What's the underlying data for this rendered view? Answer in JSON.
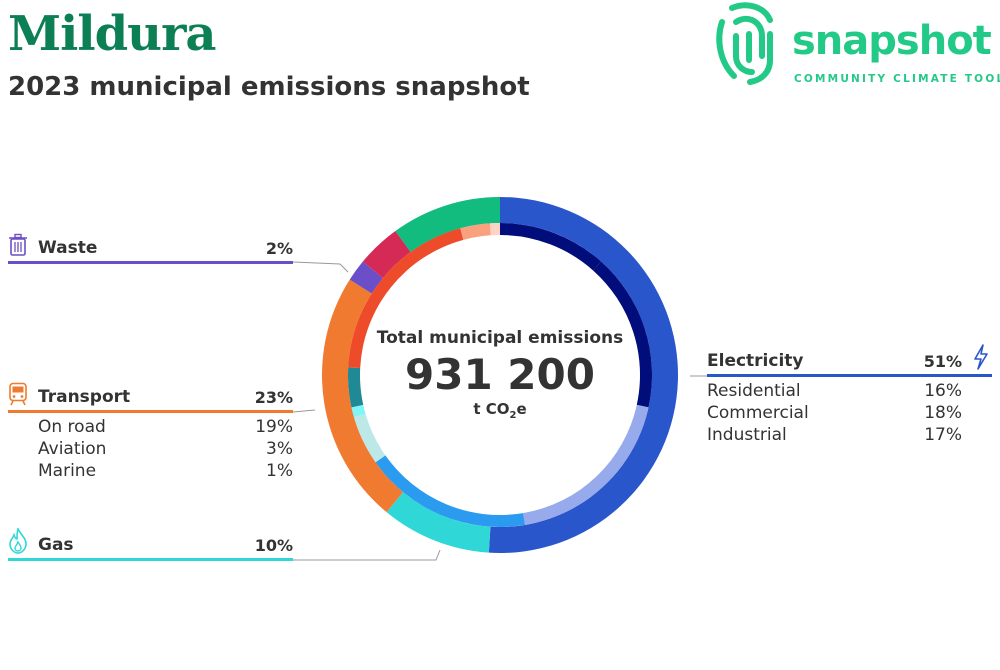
{
  "header": {
    "title": "Mildura",
    "subtitle": "2023 municipal emissions snapshot"
  },
  "logo": {
    "word": "snapshot",
    "tagline": "COMMUNITY CLIMATE TOOL",
    "icon": "fingerprint-icon",
    "color": "#22c987"
  },
  "center": {
    "label": "Total municipal emissions",
    "value": "931 200",
    "unit_prefix": "t CO",
    "unit_sub": "2",
    "unit_suffix": "e"
  },
  "sectors": {
    "waste": {
      "name": "Waste",
      "pct": "2%",
      "icon": "waste-bin-icon",
      "color": "#6b4fc8"
    },
    "transport": {
      "name": "Transport",
      "pct": "23%",
      "icon": "train-icon",
      "color": "#f07a2f",
      "subs": [
        {
          "name": "On road",
          "pct": "19%"
        },
        {
          "name": "Aviation",
          "pct": "3%"
        },
        {
          "name": "Marine",
          "pct": "1%"
        }
      ]
    },
    "gas": {
      "name": "Gas",
      "pct": "10%",
      "icon": "flame-icon",
      "color": "#2fd7d7"
    },
    "electricity": {
      "name": "Electricity",
      "pct": "51%",
      "icon": "lightning-icon",
      "color": "#2a56cc",
      "subs": [
        {
          "name": "Residential",
          "pct": "16%"
        },
        {
          "name": "Commercial",
          "pct": "18%"
        },
        {
          "name": "Industrial",
          "pct": "17%"
        }
      ]
    }
  },
  "chart_data": {
    "type": "donut",
    "total": 931200,
    "outer_ring": [
      {
        "name": "Electricity",
        "value": 51,
        "color": "#2a56cc"
      },
      {
        "name": "Gas",
        "value": 10,
        "color": "#2fd7d7"
      },
      {
        "name": "Transport",
        "value": 23,
        "color": "#f07a2f"
      },
      {
        "name": "Waste",
        "value": 2,
        "color": "#6b4fc8"
      },
      {
        "name": "",
        "value": 4,
        "color": "#d42a55"
      },
      {
        "name": "",
        "value": 10,
        "color": "#12bb7e"
      }
    ],
    "inner_ring": [
      {
        "name": "",
        "value": 11,
        "color": "#000d7a"
      },
      {
        "name": "Residential",
        "value": 16,
        "color": "#000d7a"
      },
      {
        "name": "Commercial",
        "value": 18,
        "color": "#97aaec"
      },
      {
        "name": "Industrial",
        "value": 17,
        "color": "#2b9bf0"
      },
      {
        "name": "",
        "value": 5,
        "color": "#bce8e8"
      },
      {
        "name": "",
        "value": 1,
        "color": "#7ff5f5"
      },
      {
        "name": "",
        "value": 4,
        "color": "#1f8a96"
      },
      {
        "name": "On road",
        "value": 19,
        "color": "#ee4b2b"
      },
      {
        "name": "Aviation",
        "value": 3,
        "color": "#f9a07e"
      },
      {
        "name": "Marine",
        "value": 1,
        "color": "#fdd3c6"
      }
    ]
  }
}
